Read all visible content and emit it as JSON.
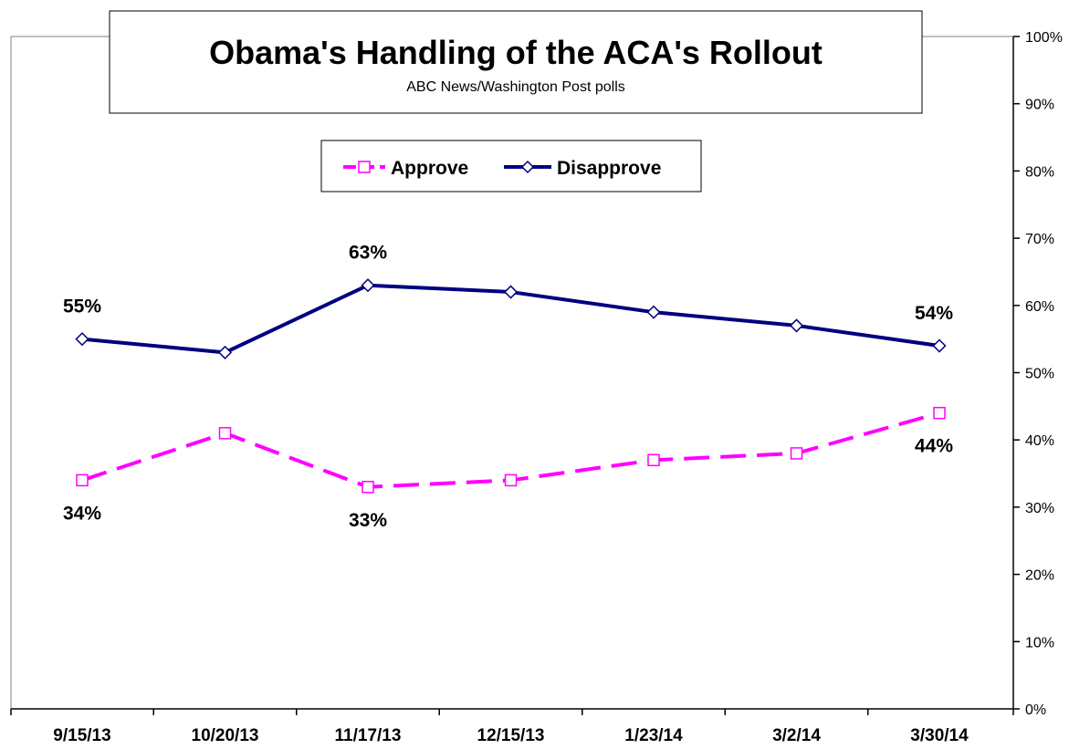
{
  "chart_data": {
    "type": "line",
    "title": "Obama's Handling of the ACA's Rollout",
    "subtitle": "ABC News/Washington  Post polls",
    "categories": [
      "9/15/13",
      "10/20/13",
      "11/17/13",
      "12/15/13",
      "1/23/14",
      "3/2/14",
      "3/30/14"
    ],
    "y_ticks": [
      "0%",
      "10%",
      "20%",
      "30%",
      "40%",
      "50%",
      "60%",
      "70%",
      "80%",
      "90%",
      "100%"
    ],
    "ylim": [
      0,
      100
    ],
    "y_axis_side": "right",
    "grid": false,
    "legend_position": "top-center",
    "series": [
      {
        "name": "Approve",
        "values": [
          34,
          41,
          33,
          34,
          37,
          38,
          44
        ],
        "color": "#ff00ff",
        "line_style": "dashed",
        "marker": "square",
        "labels": [
          {
            "index": 0,
            "text": "34%"
          },
          {
            "index": 2,
            "text": "33%"
          },
          {
            "index": 6,
            "text": "44%"
          }
        ]
      },
      {
        "name": "Disapprove",
        "values": [
          55,
          53,
          63,
          62,
          59,
          57,
          54
        ],
        "color": "#000080",
        "line_style": "solid",
        "marker": "diamond",
        "labels": [
          {
            "index": 0,
            "text": "55%"
          },
          {
            "index": 2,
            "text": "63%"
          },
          {
            "index": 6,
            "text": "54%"
          }
        ]
      }
    ]
  }
}
